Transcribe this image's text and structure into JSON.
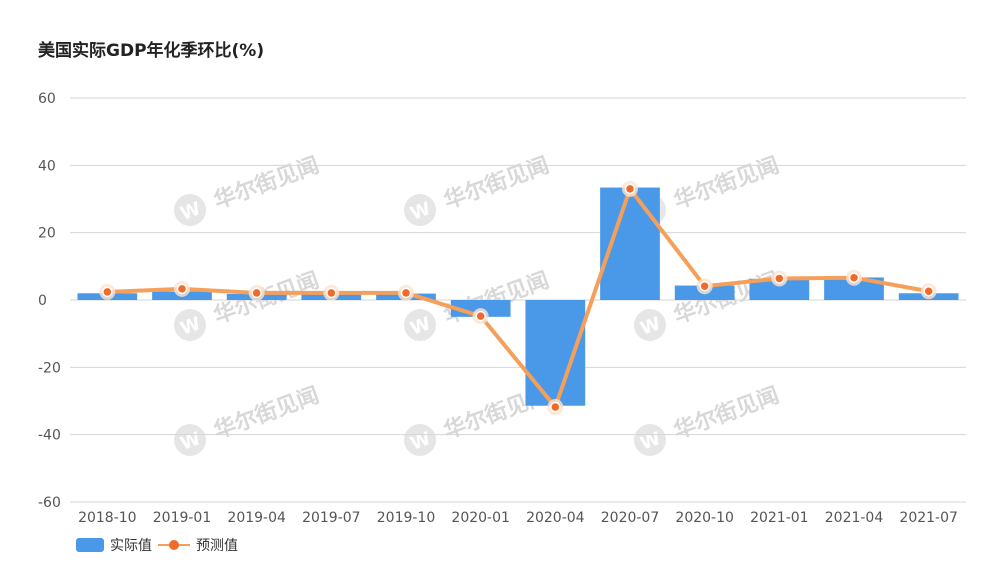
{
  "chart_data": {
    "type": "bar",
    "title": "美国实际GDP年化季环比(%)",
    "categories": [
      "2018-10",
      "2019-01",
      "2019-04",
      "2019-07",
      "2019-10",
      "2020-01",
      "2020-04",
      "2020-07",
      "2020-10",
      "2021-01",
      "2021-04",
      "2021-07"
    ],
    "ylim": [
      -60,
      60
    ],
    "yticks": [
      60,
      40,
      20,
      0,
      -20,
      -40,
      -60
    ],
    "grid": true,
    "legend_position": "bottom-left",
    "series": [
      {
        "name": "实际值",
        "type": "bar",
        "color": "#4a98e8",
        "values": [
          2.0,
          2.5,
          1.8,
          1.8,
          1.9,
          -5.0,
          -31.4,
          33.4,
          4.3,
          6.3,
          6.7,
          2.0
        ]
      },
      {
        "name": "预测值",
        "type": "line",
        "color": "#f5a05a",
        "marker_color": "#f06a2a",
        "values": [
          2.4,
          3.3,
          2.1,
          2.1,
          2.1,
          -4.8,
          -31.8,
          33.0,
          4.1,
          6.4,
          6.6,
          2.6
        ]
      }
    ]
  },
  "watermark": {
    "text": "华尔街见闻",
    "logo": "W"
  }
}
